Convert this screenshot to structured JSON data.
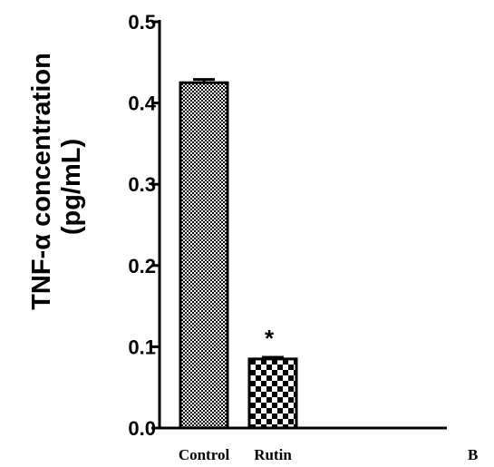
{
  "chart_data": {
    "type": "bar",
    "ylabel_line1": "TNF-α concentration",
    "ylabel_line2": "(pg/mL)",
    "categories": [
      "Control",
      "Rutin"
    ],
    "values": [
      0.425,
      0.085
    ],
    "errors": [
      0.004,
      0.002
    ],
    "significance": [
      "",
      "*"
    ],
    "ylim": [
      0.0,
      0.5
    ],
    "yticks": [
      "0.0",
      "0.1",
      "0.2",
      "0.3",
      "0.4",
      "0.5"
    ],
    "grid": false,
    "panel_label": "B",
    "colors": {
      "bar_fill_dark": "#000000",
      "bar_fill_light": "#ffffff",
      "axis": "#000000"
    }
  }
}
